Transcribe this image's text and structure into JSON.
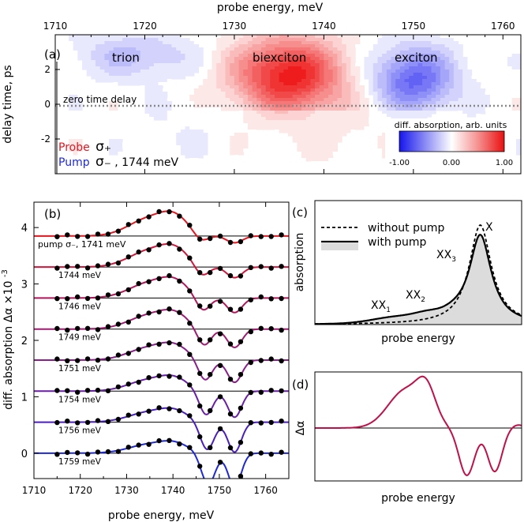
{
  "chart_data": [
    {
      "panel": "(a)",
      "type": "heatmap",
      "title": "probe energy, meV",
      "xlabel": "probe energy, meV",
      "ylabel": "delay time, ps",
      "xlim": [
        1710,
        1762
      ],
      "ylim": [
        -4,
        4
      ],
      "xticks": [
        1710,
        1720,
        1730,
        1740,
        1750,
        1760
      ],
      "yticks": [
        2,
        0,
        -2
      ],
      "labels": {
        "trion": "trion",
        "biexciton": "biexciton",
        "exciton": "exciton",
        "zero_line": "zero time delay"
      },
      "probe_label": "Probe",
      "probe_sym": "σ₊",
      "pump_label": "Pump",
      "pump_sym": "σ₋",
      "pump_energy": ", 1744 meV",
      "colorbar": {
        "title": "diff. absorption, arb. units",
        "ticks": [
          "-1.00",
          "0.00",
          "1.00"
        ],
        "colors": [
          "#2a2af0",
          "#ffffff",
          "#ee1c1c"
        ]
      },
      "blobs": [
        {
          "name": "trion",
          "x": 1719,
          "y": 2.8,
          "sx": 4.5,
          "sy": 0.9,
          "amp": -0.28
        },
        {
          "name": "biexciton",
          "x": 1736,
          "y": 1.7,
          "sx": 4.2,
          "sy": 1.5,
          "amp": 1.0
        },
        {
          "name": "exciton",
          "x": 1750,
          "y": 1.4,
          "sx": 3.2,
          "sy": 1.3,
          "amp": -0.7
        },
        {
          "name": "weak-pos",
          "x": 1742,
          "y": -1.2,
          "sx": 5,
          "sy": 1.8,
          "amp": 0.12
        },
        {
          "name": "weak-neg",
          "x": 1724,
          "y": -1.5,
          "sx": 3,
          "sy": 1.2,
          "amp": -0.08
        }
      ]
    },
    {
      "panel": "(b)",
      "type": "line",
      "xlabel": "probe energy, meV",
      "ylabel": "diff. absorption Δα ×10",
      "ylabel_sup": "-3",
      "xlim": [
        1710,
        1765
      ],
      "ylim": [
        -0.45,
        4.45
      ],
      "xticks": [
        1710,
        1720,
        1730,
        1740,
        1750,
        1760
      ],
      "yticks": [
        0,
        1,
        2,
        3,
        4
      ],
      "series": [
        {
          "label": "pump σ₋, 1741 meV",
          "pump": 1741,
          "offset": 3.85,
          "color": "#e8141e"
        },
        {
          "label": "1744 meV",
          "pump": 1744,
          "offset": 3.3,
          "color": "#d4143a"
        },
        {
          "label": "1746 meV",
          "pump": 1746,
          "offset": 2.75,
          "color": "#b4145a"
        },
        {
          "label": "1749 meV",
          "pump": 1749,
          "offset": 2.2,
          "color": "#a01a72"
        },
        {
          "label": "1751 meV",
          "pump": 1751,
          "offset": 1.65,
          "color": "#8a1e8a"
        },
        {
          "label": "1754 meV",
          "pump": 1754,
          "offset": 1.1,
          "color": "#6a1ea8"
        },
        {
          "label": "1756 meV",
          "pump": 1756,
          "offset": 0.55,
          "color": "#4a1ec0"
        },
        {
          "label": "1759 meV",
          "pump": 1759,
          "offset": 0.0,
          "color": "#1e28d8"
        }
      ]
    },
    {
      "panel": "(c)",
      "type": "line",
      "xlabel": "probe energy",
      "ylabel": "absorption",
      "legend": [
        "without pump",
        "with pump"
      ],
      "labels": {
        "X": "X",
        "XX1": "XX",
        "XX1_sub": "1",
        "XX2": "XX",
        "XX2_sub": "2",
        "XX3": "XX",
        "XX3_sub": "3"
      }
    },
    {
      "panel": "(d)",
      "type": "line",
      "xlabel": "probe energy",
      "ylabel": "Δα",
      "color": "#c0104a"
    }
  ]
}
